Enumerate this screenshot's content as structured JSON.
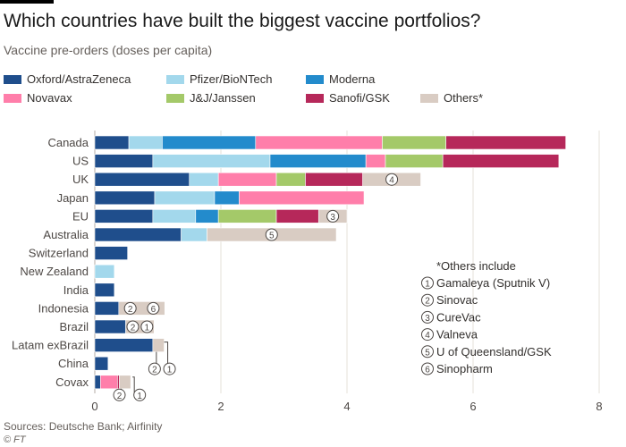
{
  "header": {
    "title": "Which countries have built the biggest vaccine portfolios?",
    "subtitle": "Vaccine pre-orders (doses per capita)"
  },
  "footer": {
    "source": "Sources: Deutsche Bank; Airfinity",
    "copyright": "© FT"
  },
  "chart_data": {
    "type": "bar",
    "orientation": "horizontal",
    "stacked": true,
    "categories": [
      "Canada",
      "US",
      "UK",
      "Japan",
      "EU",
      "Australia",
      "Switzerland",
      "New Zealand",
      "India",
      "Indonesia",
      "Brazil",
      "Latam exBrazil",
      "China",
      "Covax"
    ],
    "series": [
      {
        "name": "Oxford/AstraZeneca",
        "color": "#1f4e8c",
        "values": [
          0.54,
          0.92,
          1.5,
          0.95,
          0.92,
          1.37,
          0.52,
          0,
          0.31,
          0.38,
          0.49,
          0.92,
          0.21,
          0.09
        ]
      },
      {
        "name": "Pfizer/BioNTech",
        "color": "#a3d8ec",
        "values": [
          0.53,
          1.86,
          0.46,
          0.95,
          0.68,
          0.41,
          0,
          0.31,
          0,
          0,
          0,
          0,
          0,
          0
        ]
      },
      {
        "name": "Moderna",
        "color": "#238bcc",
        "values": [
          1.48,
          1.52,
          0,
          0.39,
          0.36,
          0,
          0,
          0,
          0,
          0,
          0,
          0,
          0,
          0
        ]
      },
      {
        "name": "Novavax",
        "color": "#ff7eaa",
        "values": [
          2.01,
          0.31,
          0.92,
          1.98,
          0,
          0,
          0,
          0,
          0,
          0,
          0,
          0,
          0,
          0
        ]
      },
      {
        "name": "J&J/Janssen",
        "color": "#a4c969",
        "values": [
          1.01,
          0.91,
          0.46,
          0,
          0.92,
          0,
          0,
          0,
          0,
          0,
          0,
          0,
          0,
          0
        ]
      },
      {
        "name": "Sanofi/GSK",
        "color": "#b6285a",
        "values": [
          1.9,
          1.84,
          0.91,
          0,
          0.67,
          0,
          0,
          0,
          0,
          0,
          0,
          0,
          0,
          0
        ]
      },
      {
        "name": "Others*",
        "color": "#d9ccc3",
        "values": [
          0,
          0,
          0.92,
          0,
          0.45,
          2.05,
          0,
          0,
          0,
          0.73,
          0.45,
          0.18,
          0,
          0.18
        ]
      }
    ],
    "extra_segments": [
      {
        "category": "Covax",
        "color": "#b6285a",
        "value": 0.03,
        "after_series": "Novavax"
      }
    ],
    "novavax_covax": 0.27,
    "xlim": [
      0,
      8
    ],
    "xticks": [
      "0",
      "2",
      "4",
      "6",
      "8"
    ],
    "grid": true,
    "bar_markers": [
      {
        "category": "UK",
        "labels": [
          "4"
        ]
      },
      {
        "category": "EU",
        "labels": [
          "3"
        ]
      },
      {
        "category": "Australia",
        "labels": [
          "5"
        ]
      },
      {
        "category": "Indonesia",
        "labels": [
          "2",
          "6"
        ]
      },
      {
        "category": "Brazil",
        "labels": [
          "2",
          "1"
        ]
      },
      {
        "category": "Latam exBrazil",
        "labels": [
          "2",
          "1"
        ]
      },
      {
        "category": "Covax",
        "labels": [
          "2",
          "1"
        ]
      }
    ],
    "others_note": {
      "title": "*Others include",
      "items": [
        {
          "num": "1",
          "label": "Gamaleya (Sputnik V)"
        },
        {
          "num": "2",
          "label": "Sinovac"
        },
        {
          "num": "3",
          "label": "CureVac"
        },
        {
          "num": "4",
          "label": "Valneva"
        },
        {
          "num": "5",
          "label": "U of Queensland/GSK"
        },
        {
          "num": "6",
          "label": "Sinopharm"
        }
      ]
    }
  }
}
